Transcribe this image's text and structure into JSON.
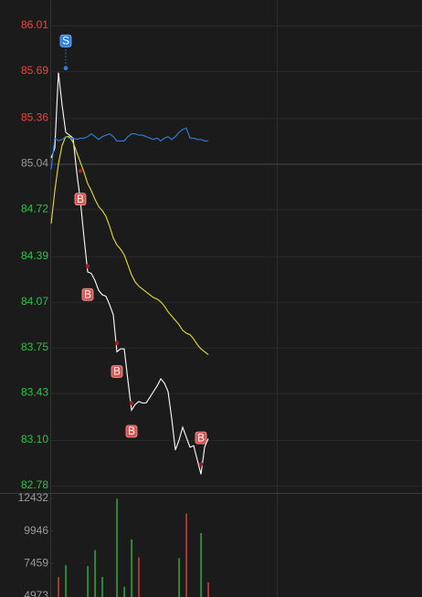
{
  "chart_data": [
    {
      "type": "line",
      "ylim": [
        82.78,
        86.01
      ],
      "yticks": [
        86.01,
        85.69,
        85.36,
        85.04,
        84.72,
        84.39,
        84.07,
        83.75,
        83.43,
        {
          "value": 83.1,
          "label": "83.10"
        },
        82.78
      ],
      "reference": 85.04,
      "up_color": "#e8483c",
      "down_color": "#2fc24a",
      "flat_color": "#9a9a9a",
      "grid": true,
      "series": [
        {
          "color": "#ffffff",
          "values": [
            85.08,
            85.15,
            85.68,
            85.45,
            85.26,
            85.24,
            85.22,
            84.98,
            84.78,
            84.52,
            84.28,
            84.27,
            84.22,
            84.15,
            84.12,
            84.11,
            84.05,
            83.98,
            83.72,
            83.74,
            83.74,
            83.52,
            83.31,
            83.35,
            83.37,
            83.36,
            83.36,
            83.4,
            83.44,
            83.48,
            83.53,
            83.5,
            83.44,
            83.25,
            83.03,
            83.1,
            83.19,
            83.12,
            83.05,
            83.06,
            82.96,
            82.86,
            83.05,
            83.11
          ]
        },
        {
          "color": "#e6e020",
          "values": [
            84.62,
            84.85,
            85.04,
            85.17,
            85.23,
            85.23,
            85.19,
            85.12,
            85.05,
            84.98,
            84.9,
            84.85,
            84.79,
            84.74,
            84.71,
            84.67,
            84.6,
            84.52,
            84.47,
            84.44,
            84.4,
            84.33,
            84.26,
            84.21,
            84.18,
            84.16,
            84.14,
            84.12,
            84.1,
            84.09,
            84.07,
            84.04,
            84.0,
            83.97,
            83.94,
            83.91,
            83.87,
            83.85,
            83.84,
            83.81,
            83.77,
            83.74,
            83.72,
            83.7
          ]
        },
        {
          "color": "#2f7fe0",
          "values": [
            85.0,
            85.22,
            85.2,
            85.21,
            85.23,
            85.22,
            85.22,
            85.21,
            85.22,
            85.22,
            85.23,
            85.25,
            85.23,
            85.21,
            85.23,
            85.24,
            85.25,
            85.23,
            85.2,
            85.2,
            85.2,
            85.23,
            85.25,
            85.25,
            85.24,
            85.24,
            85.23,
            85.22,
            85.21,
            85.22,
            85.2,
            85.22,
            85.23,
            85.21,
            85.23,
            85.26,
            85.28,
            85.29,
            85.22,
            85.22,
            85.21,
            85.21,
            85.2,
            85.2
          ]
        }
      ],
      "signals": [
        null,
        null,
        null,
        null,
        "S",
        null,
        null,
        null,
        "B",
        null,
        "B",
        null,
        null,
        null,
        null,
        null,
        null,
        null,
        "B",
        null,
        null,
        null,
        "B",
        null,
        null,
        null,
        null,
        null,
        null,
        null,
        null,
        null,
        null,
        null,
        null,
        null,
        null,
        null,
        null,
        null,
        null,
        "B",
        null,
        null
      ],
      "signal_prices": [
        null,
        null,
        null,
        null,
        85.71,
        null,
        null,
        null,
        84.99,
        null,
        84.32,
        null,
        null,
        null,
        null,
        null,
        null,
        null,
        83.78,
        null,
        null,
        null,
        83.36,
        null,
        null,
        null,
        null,
        null,
        null,
        null,
        null,
        null,
        null,
        null,
        null,
        null,
        null,
        null,
        null,
        null,
        null,
        82.93,
        null,
        null
      ],
      "signal_colors": {
        "S": "#2f7fe0",
        "B": "#d9534f"
      }
    },
    {
      "type": "bar",
      "ylim": [
        4905,
        12773
      ],
      "yticks": [
        12432,
        9946,
        7459,
        4973
      ],
      "values": [
        null,
        null,
        6439,
        null,
        7323,
        null,
        null,
        null,
        null,
        null,
        7256,
        null,
        8482,
        null,
        6439,
        null,
        null,
        null,
        12400,
        null,
        5690,
        null,
        9299,
        null,
        7936,
        null,
        null,
        null,
        null,
        null,
        null,
        null,
        null,
        null,
        null,
        7868,
        null,
        11274,
        null,
        null,
        null,
        9775,
        null,
        6028
      ],
      "colors": [
        null,
        null,
        "#e8483c",
        null,
        "#2fc24a",
        null,
        null,
        null,
        null,
        null,
        "#2fc24a",
        null,
        "#2fc24a",
        null,
        "#2fc24a",
        null,
        null,
        null,
        "#2fc24a",
        null,
        "#2fc24a",
        null,
        "#2fc24a",
        null,
        "#e8483c",
        null,
        null,
        null,
        null,
        null,
        null,
        null,
        null,
        null,
        null,
        "#2fc24a",
        null,
        "#e8483c",
        null,
        null,
        null,
        "#2fc24a",
        null,
        "#e8483c"
      ]
    }
  ]
}
